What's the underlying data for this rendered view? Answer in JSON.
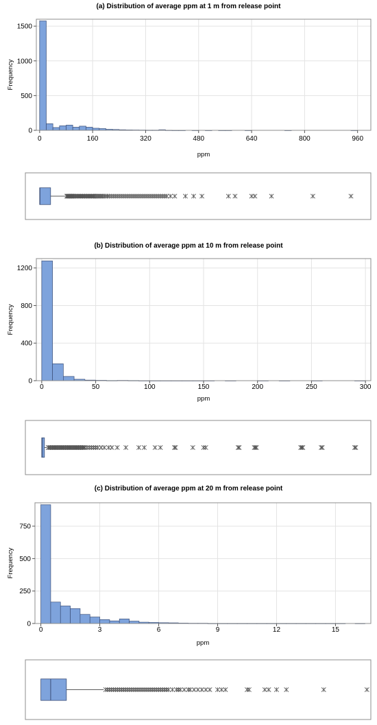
{
  "chart_data": [
    {
      "type": "bar",
      "title": "(a) Distribution of average ppm at 1 m from release point",
      "xlabel": "ppm",
      "ylabel": "Frequency",
      "xlim": [
        -10,
        1000
      ],
      "ylim": [
        0,
        1600
      ],
      "xticks": [
        0,
        160,
        320,
        480,
        640,
        800,
        960
      ],
      "yticks": [
        0,
        500,
        1000,
        1500
      ],
      "bin_width": 20,
      "bins": [
        {
          "x": 0,
          "y": 1575
        },
        {
          "x": 20,
          "y": 95
        },
        {
          "x": 40,
          "y": 40
        },
        {
          "x": 60,
          "y": 65
        },
        {
          "x": 80,
          "y": 75
        },
        {
          "x": 100,
          "y": 45
        },
        {
          "x": 120,
          "y": 60
        },
        {
          "x": 140,
          "y": 45
        },
        {
          "x": 160,
          "y": 30
        },
        {
          "x": 180,
          "y": 25
        },
        {
          "x": 200,
          "y": 15
        },
        {
          "x": 220,
          "y": 12
        },
        {
          "x": 240,
          "y": 8
        },
        {
          "x": 260,
          "y": 6
        },
        {
          "x": 280,
          "y": 5
        },
        {
          "x": 300,
          "y": 4
        },
        {
          "x": 320,
          "y": 3
        },
        {
          "x": 340,
          "y": 3
        },
        {
          "x": 360,
          "y": 8
        },
        {
          "x": 380,
          "y": 2
        },
        {
          "x": 400,
          "y": 1
        },
        {
          "x": 420,
          "y": 1
        },
        {
          "x": 460,
          "y": 1
        },
        {
          "x": 500,
          "y": 1
        },
        {
          "x": 540,
          "y": 1
        },
        {
          "x": 560,
          "y": 1
        },
        {
          "x": 620,
          "y": 1
        },
        {
          "x": 740,
          "y": 1
        },
        {
          "x": 940,
          "y": 1
        }
      ],
      "grid": true,
      "boxplot": {
        "q1": 0,
        "median": 1,
        "q3": 33,
        "whisker_low": 0,
        "whisker_high": 80,
        "outliers": [
          82,
          84,
          86,
          88,
          90,
          92,
          94,
          96,
          98,
          100,
          103,
          106,
          109,
          112,
          115,
          118,
          121,
          124,
          127,
          130,
          133,
          136,
          139,
          142,
          145,
          148,
          151,
          154,
          157,
          160,
          163,
          166,
          170,
          174,
          178,
          182,
          186,
          190,
          195,
          200,
          205,
          210,
          216,
          222,
          228,
          234,
          240,
          246,
          252,
          258,
          264,
          270,
          276,
          282,
          288,
          294,
          300,
          306,
          312,
          318,
          324,
          330,
          336,
          342,
          348,
          354,
          360,
          366,
          372,
          378,
          384,
          395,
          408,
          440,
          465,
          490,
          570,
          590,
          640,
          650,
          700,
          825,
          940
        ]
      }
    },
    {
      "type": "bar",
      "title": "(b) Distribution of average ppm at 10 m from release point",
      "xlabel": "ppm",
      "ylabel": "Frequency",
      "xlim": [
        -5,
        305
      ],
      "ylim": [
        0,
        1300
      ],
      "xticks": [
        0,
        50,
        100,
        150,
        200,
        250,
        300
      ],
      "yticks": [
        0,
        400,
        800,
        1200
      ],
      "bin_width": 10,
      "bins": [
        {
          "x": 0,
          "y": 1275
        },
        {
          "x": 10,
          "y": 180
        },
        {
          "x": 20,
          "y": 45
        },
        {
          "x": 30,
          "y": 15
        },
        {
          "x": 40,
          "y": 6
        },
        {
          "x": 50,
          "y": 4
        },
        {
          "x": 60,
          "y": 2
        },
        {
          "x": 70,
          "y": 3
        },
        {
          "x": 80,
          "y": 2
        },
        {
          "x": 90,
          "y": 1
        },
        {
          "x": 100,
          "y": 1
        },
        {
          "x": 110,
          "y": 1
        },
        {
          "x": 120,
          "y": 1
        },
        {
          "x": 130,
          "y": 1
        },
        {
          "x": 140,
          "y": 1
        },
        {
          "x": 150,
          "y": 1
        },
        {
          "x": 170,
          "y": 1
        },
        {
          "x": 200,
          "y": 1
        },
        {
          "x": 220,
          "y": 1
        },
        {
          "x": 250,
          "y": 1
        },
        {
          "x": 290,
          "y": 1
        }
      ],
      "grid": true,
      "boxplot": {
        "q1": 0,
        "median": 0.5,
        "q3": 2.5,
        "whisker_low": 0,
        "whisker_high": 5,
        "outliers": [
          6,
          7,
          8,
          9,
          10,
          11,
          12,
          13,
          14,
          15,
          16,
          17,
          18,
          19,
          20,
          21,
          22,
          23,
          24,
          25,
          26,
          27,
          28,
          29,
          30,
          31,
          32,
          33,
          34,
          35,
          36,
          37,
          38,
          39,
          40,
          42,
          44,
          46,
          48,
          50,
          52,
          55,
          58,
          62,
          65,
          70,
          78,
          90,
          95,
          105,
          110,
          123,
          124,
          140,
          150,
          152,
          182,
          183,
          197,
          198,
          199,
          240,
          241,
          242,
          259,
          260,
          290,
          291
        ]
      }
    },
    {
      "type": "bar",
      "title": "(c) Distribution of average ppm at 20 m from release point",
      "xlabel": "ppm",
      "ylabel": "Frequency",
      "xlim": [
        -0.3,
        16.8
      ],
      "ylim": [
        0,
        930
      ],
      "xticks": [
        0,
        3,
        6,
        9,
        12,
        15
      ],
      "yticks": [
        0,
        250,
        500,
        750
      ],
      "bin_width": 0.5,
      "bins": [
        {
          "x": 0,
          "y": 915
        },
        {
          "x": 0.5,
          "y": 165
        },
        {
          "x": 1,
          "y": 135
        },
        {
          "x": 1.5,
          "y": 115
        },
        {
          "x": 2,
          "y": 70
        },
        {
          "x": 2.5,
          "y": 50
        },
        {
          "x": 3,
          "y": 30
        },
        {
          "x": 3.5,
          "y": 20
        },
        {
          "x": 4,
          "y": 35
        },
        {
          "x": 4.5,
          "y": 18
        },
        {
          "x": 5,
          "y": 10
        },
        {
          "x": 5.5,
          "y": 8
        },
        {
          "x": 6,
          "y": 6
        },
        {
          "x": 6.5,
          "y": 5
        },
        {
          "x": 7,
          "y": 3
        },
        {
          "x": 7.5,
          "y": 2
        },
        {
          "x": 8,
          "y": 2
        },
        {
          "x": 8.5,
          "y": 1
        },
        {
          "x": 9,
          "y": 1
        },
        {
          "x": 9.5,
          "y": 1
        },
        {
          "x": 10,
          "y": 1
        },
        {
          "x": 10.5,
          "y": 1
        },
        {
          "x": 11,
          "y": 1
        },
        {
          "x": 11.5,
          "y": 1
        },
        {
          "x": 12,
          "y": 1
        },
        {
          "x": 12.5,
          "y": 1
        },
        {
          "x": 13,
          "y": 1
        },
        {
          "x": 13.5,
          "y": 1
        },
        {
          "x": 14,
          "y": 1
        },
        {
          "x": 14.5,
          "y": 1
        },
        {
          "x": 15,
          "y": 1
        },
        {
          "x": 16,
          "y": 1
        }
      ],
      "grid": true,
      "boxplot": {
        "q1": 0,
        "median": 0.5,
        "q3": 1.3,
        "whisker_low": 0,
        "whisker_high": 3.2,
        "outliers": [
          3.3,
          3.4,
          3.5,
          3.6,
          3.7,
          3.8,
          3.9,
          4.0,
          4.1,
          4.2,
          4.3,
          4.4,
          4.5,
          4.6,
          4.7,
          4.8,
          4.9,
          5.0,
          5.1,
          5.2,
          5.3,
          5.4,
          5.5,
          5.6,
          5.7,
          5.8,
          5.9,
          6.0,
          6.1,
          6.2,
          6.3,
          6.4,
          6.5,
          6.7,
          6.9,
          7.0,
          7.1,
          7.3,
          7.5,
          7.6,
          7.8,
          8.0,
          8.2,
          8.4,
          8.6,
          9.0,
          9.2,
          9.4,
          10.5,
          10.6,
          11.4,
          11.6,
          12.0,
          12.5,
          14.4,
          16.6
        ]
      }
    }
  ]
}
